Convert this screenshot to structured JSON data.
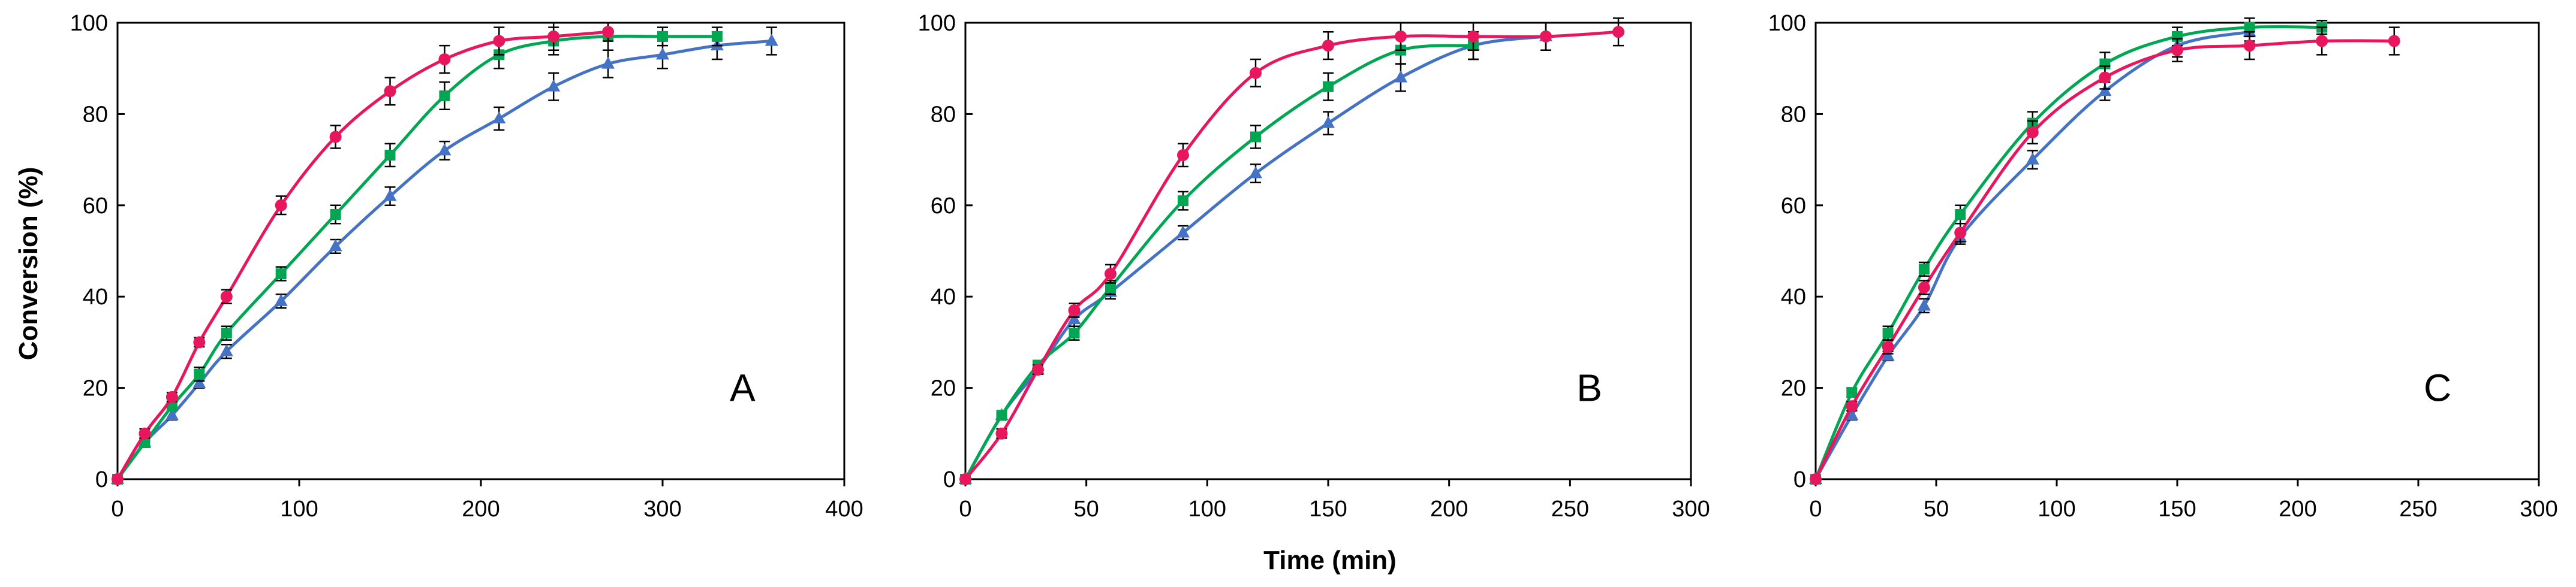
{
  "figure": {
    "ylabel": "Conversion (%)",
    "xlabel": "Time (min)"
  },
  "chart_data": [
    {
      "type": "line",
      "panel_label": "A",
      "xlim": [
        0,
        400
      ],
      "ylim": [
        0,
        100
      ],
      "xticks": [
        "0",
        "100",
        "200",
        "300",
        "400"
      ],
      "yticks": [
        "0",
        "20",
        "40",
        "60",
        "80",
        "100"
      ],
      "series": [
        {
          "name": "blue",
          "color": "#4472C4",
          "marker": "triangle",
          "x": [
            0,
            15,
            30,
            45,
            60,
            90,
            120,
            150,
            180,
            210,
            240,
            270,
            300,
            330,
            360
          ],
          "y": [
            0,
            8,
            14,
            21,
            28,
            39,
            51,
            62,
            72,
            79,
            86,
            91,
            93,
            95,
            96
          ],
          "err": [
            0,
            1,
            1,
            1,
            1.5,
            1.5,
            1.5,
            2,
            2,
            2.5,
            3,
            3,
            3,
            3,
            3
          ]
        },
        {
          "name": "green",
          "color": "#00A651",
          "marker": "square",
          "x": [
            0,
            15,
            30,
            45,
            60,
            90,
            120,
            150,
            180,
            210,
            240,
            270,
            300,
            330
          ],
          "y": [
            0,
            8,
            16,
            23,
            32,
            45,
            58,
            71,
            84,
            93,
            96,
            97,
            97,
            97
          ],
          "err": [
            0,
            1,
            1,
            1.5,
            1.5,
            1.5,
            2,
            2.5,
            3,
            3,
            3,
            3,
            2,
            2
          ]
        },
        {
          "name": "pink",
          "color": "#E8175D",
          "marker": "circle",
          "x": [
            0,
            15,
            30,
            45,
            60,
            90,
            120,
            150,
            180,
            210,
            240,
            270
          ],
          "y": [
            0,
            10,
            18,
            30,
            40,
            60,
            75,
            85,
            92,
            96,
            97,
            98
          ],
          "err": [
            0,
            1,
            1,
            1,
            1.5,
            2,
            2.5,
            3,
            3,
            3,
            3,
            2
          ]
        }
      ]
    },
    {
      "type": "line",
      "panel_label": "B",
      "xlim": [
        0,
        300
      ],
      "ylim": [
        0,
        100
      ],
      "xticks": [
        "0",
        "50",
        "100",
        "150",
        "200",
        "250",
        "300"
      ],
      "yticks": [
        "0",
        "20",
        "40",
        "60",
        "80",
        "100"
      ],
      "series": [
        {
          "name": "blue",
          "color": "#4472C4",
          "marker": "triangle",
          "x": [
            0,
            15,
            30,
            45,
            60,
            90,
            120,
            150,
            180,
            210,
            240
          ],
          "y": [
            0,
            14,
            24,
            35,
            41,
            54,
            67,
            78,
            88,
            95,
            97
          ],
          "err": [
            0,
            1,
            1,
            1.5,
            1.5,
            1.5,
            2,
            2.5,
            3,
            3,
            3
          ]
        },
        {
          "name": "green",
          "color": "#00A651",
          "marker": "square",
          "x": [
            0,
            15,
            30,
            45,
            60,
            90,
            120,
            150,
            180,
            210
          ],
          "y": [
            0,
            14,
            25,
            32,
            42,
            61,
            75,
            86,
            94,
            95
          ],
          "err": [
            0,
            1,
            1,
            1.5,
            1.5,
            2,
            2.5,
            3,
            3,
            3
          ]
        },
        {
          "name": "pink",
          "color": "#E8175D",
          "marker": "circle",
          "x": [
            0,
            15,
            30,
            45,
            60,
            90,
            120,
            150,
            180,
            210,
            240,
            270
          ],
          "y": [
            0,
            10,
            24,
            37,
            45,
            71,
            89,
            95,
            97,
            97,
            97,
            98
          ],
          "err": [
            0,
            1,
            1,
            1.5,
            2,
            2.5,
            3,
            3,
            3,
            3,
            3,
            3
          ]
        }
      ]
    },
    {
      "type": "line",
      "panel_label": "C",
      "xlim": [
        0,
        300
      ],
      "ylim": [
        0,
        100
      ],
      "xticks": [
        "0",
        "50",
        "100",
        "150",
        "200",
        "250",
        "300"
      ],
      "yticks": [
        "0",
        "20",
        "40",
        "60",
        "80",
        "100"
      ],
      "series": [
        {
          "name": "blue",
          "color": "#4472C4",
          "marker": "triangle",
          "x": [
            0,
            15,
            30,
            45,
            60,
            90,
            120,
            150,
            180
          ],
          "y": [
            0,
            14,
            27,
            38,
            53,
            70,
            85,
            95,
            98
          ],
          "err": [
            0,
            1,
            1,
            1.5,
            1.5,
            2,
            2,
            2.5,
            2
          ]
        },
        {
          "name": "green",
          "color": "#00A651",
          "marker": "square",
          "x": [
            0,
            15,
            30,
            45,
            60,
            90,
            120,
            150,
            180,
            210
          ],
          "y": [
            0,
            19,
            32,
            46,
            58,
            78,
            91,
            97,
            99,
            99
          ],
          "err": [
            0,
            1,
            1.5,
            1.5,
            2,
            2.5,
            2.5,
            2,
            2,
            1.5
          ]
        },
        {
          "name": "pink",
          "color": "#E8175D",
          "marker": "circle",
          "x": [
            0,
            15,
            30,
            45,
            60,
            90,
            120,
            150,
            180,
            210,
            240
          ],
          "y": [
            0,
            16,
            29,
            42,
            54,
            76,
            88,
            94,
            95,
            96,
            96
          ],
          "err": [
            0,
            1,
            1.5,
            1.5,
            2,
            2.5,
            2.5,
            2.5,
            3,
            3,
            3
          ]
        }
      ]
    }
  ]
}
